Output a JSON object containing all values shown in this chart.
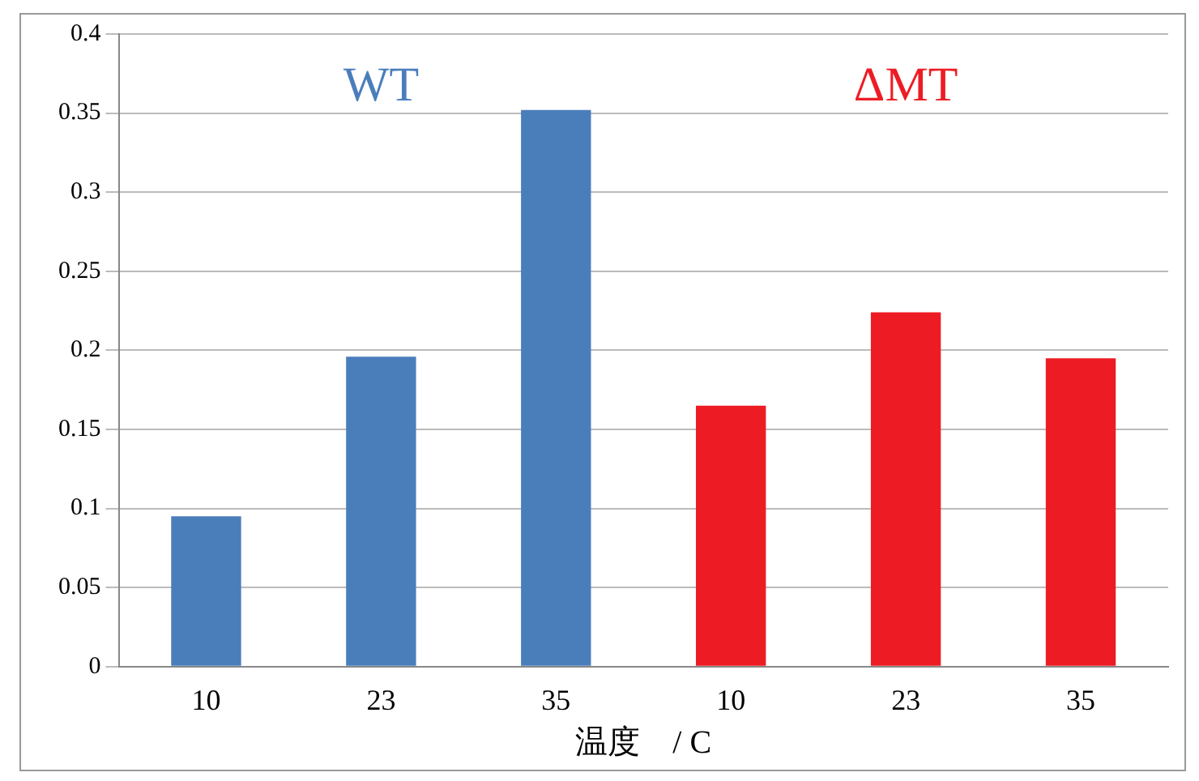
{
  "chart_data": {
    "type": "bar",
    "xlabel": "温度　/ C",
    "categories": [
      "10",
      "23",
      "35",
      "10",
      "23",
      "35"
    ],
    "series": [
      {
        "name": "WT",
        "color": "#4a7ebb",
        "values": [
          0.095,
          0.196,
          0.352,
          null,
          null,
          null
        ]
      },
      {
        "name": "ΔMT",
        "color": "#ed1c24",
        "values": [
          null,
          null,
          null,
          0.165,
          0.224,
          0.195
        ]
      }
    ],
    "ylim": [
      0,
      0.4
    ],
    "yticks": [
      0,
      0.05,
      0.1,
      0.15,
      0.2,
      0.25,
      0.3,
      0.35,
      0.4
    ],
    "grid": "y",
    "legend": false
  }
}
